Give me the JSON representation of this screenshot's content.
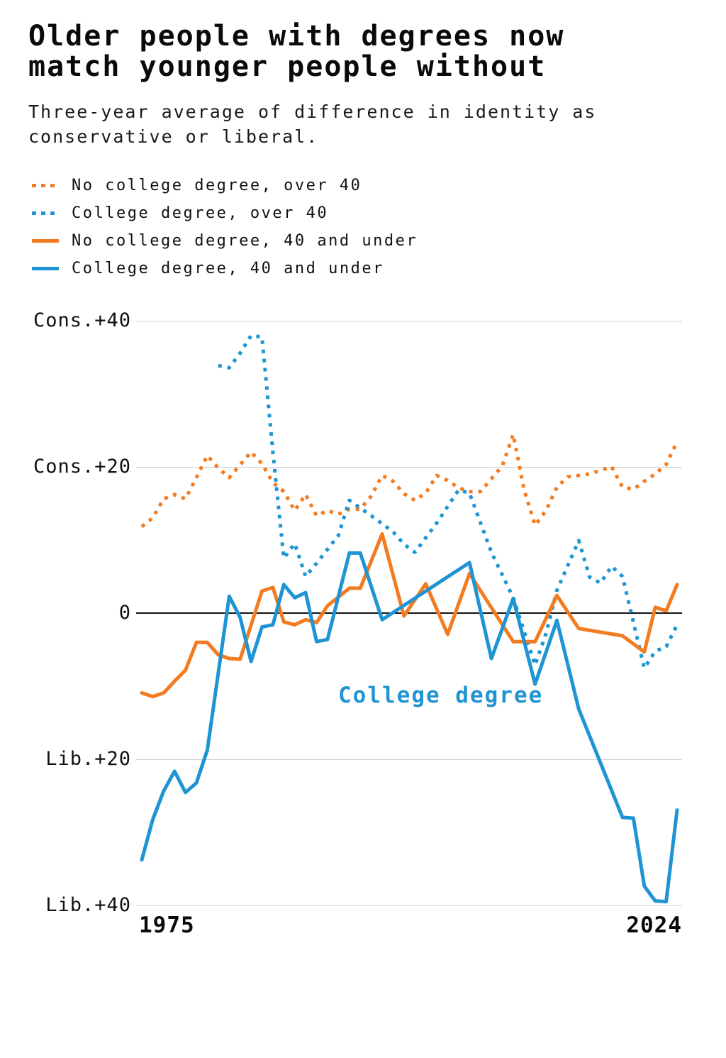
{
  "header": {
    "title_line1": "Older people with degrees now",
    "title_line2": "match younger people without",
    "subtitle_line1": "Three-year average of difference in identity as",
    "subtitle_line2": "conservative or liberal."
  },
  "colors": {
    "orange": "#f37b21",
    "blue": "#1e95d2",
    "gridline": "#cfcfcf",
    "zero_line": "#111111"
  },
  "chart_data": {
    "type": "line",
    "title": "Older people with degrees now match younger people without",
    "subtitle": "Three-year average of difference in identity as conservative or liberal.",
    "x_axis": {
      "left_label": "1975",
      "right_label": "2024",
      "min": 1975,
      "max": 2024
    },
    "y_axis": {
      "unit": "percentage-point difference, conservative minus liberal",
      "min": -43,
      "max": 42,
      "grid": true,
      "ticks": [
        {
          "label": "Cons.+40",
          "value": 40
        },
        {
          "label": "Cons.+20",
          "value": 20
        },
        {
          "label": "0",
          "value": 0
        },
        {
          "label": "Lib.+20",
          "value": -20
        },
        {
          "label": "Lib.+40",
          "value": -40
        }
      ]
    },
    "annotation": {
      "text": "College degree",
      "color": "#1e95d2"
    },
    "legend_position": "top-left",
    "series": [
      {
        "id": "no-college-over-40",
        "label": "No college degree, over 40",
        "style": "dotted",
        "color": "#f37b21",
        "points": [
          [
            1975,
            11.8
          ],
          [
            1976,
            13
          ],
          [
            1977,
            15.6
          ],
          [
            1978,
            16.2
          ],
          [
            1979,
            15.6
          ],
          [
            1980,
            18.5
          ],
          [
            1981,
            21.5
          ],
          [
            1982,
            19.8
          ],
          [
            1983,
            18.5
          ],
          [
            1985,
            22
          ],
          [
            1986,
            20.4
          ],
          [
            1987,
            17.8
          ],
          [
            1988,
            16.6
          ],
          [
            1989,
            14
          ],
          [
            1990,
            16.2
          ],
          [
            1991,
            13.3
          ],
          [
            1992,
            14
          ],
          [
            1993,
            13.5
          ],
          [
            1994,
            14.2
          ],
          [
            1995,
            14.2
          ],
          [
            1996,
            16
          ],
          [
            1997,
            18.8
          ],
          [
            1998,
            18
          ],
          [
            1999,
            16.3
          ],
          [
            2000,
            15.4
          ],
          [
            2001,
            16.4
          ],
          [
            2002,
            18.8
          ],
          [
            2003,
            18.1
          ],
          [
            2004,
            17.1
          ],
          [
            2005,
            16.6
          ],
          [
            2006,
            16.6
          ],
          [
            2008,
            20.1
          ],
          [
            2009,
            24.4
          ],
          [
            2010,
            16.8
          ],
          [
            2011,
            12
          ],
          [
            2012,
            14
          ],
          [
            2013,
            17.2
          ],
          [
            2014,
            18.6
          ],
          [
            2015,
            18.8
          ],
          [
            2016,
            19
          ],
          [
            2017,
            19.5
          ],
          [
            2018,
            20
          ],
          [
            2019,
            17.2
          ],
          [
            2020,
            16.9
          ],
          [
            2021,
            18
          ],
          [
            2022,
            19
          ],
          [
            2023,
            20.3
          ],
          [
            2024,
            23.4
          ]
        ]
      },
      {
        "id": "college-over-40",
        "label": "College degree, over 40",
        "style": "dotted",
        "color": "#1e95d2",
        "points": [
          [
            1982,
            33.8
          ],
          [
            1983,
            33.5
          ],
          [
            1984,
            35.5
          ],
          [
            1985,
            37.9
          ],
          [
            1986,
            37.7
          ],
          [
            1987,
            22
          ],
          [
            1988,
            7.5
          ],
          [
            1989,
            9.5
          ],
          [
            1990,
            5
          ],
          [
            1991,
            6.8
          ],
          [
            1992,
            8.7
          ],
          [
            1993,
            10.6
          ],
          [
            1994,
            15.4
          ],
          [
            1996,
            13.3
          ],
          [
            1998,
            11.1
          ],
          [
            1999,
            9.4
          ],
          [
            2000,
            8.3
          ],
          [
            2002,
            12.3
          ],
          [
            2004,
            16.8
          ],
          [
            2005,
            16.4
          ],
          [
            2007,
            8.3
          ],
          [
            2009,
            2.1
          ],
          [
            2011,
            -7.1
          ],
          [
            2012,
            -2.8
          ],
          [
            2013,
            3.1
          ],
          [
            2015,
            9.9
          ],
          [
            2016,
            4.9
          ],
          [
            2017,
            4.1
          ],
          [
            2018,
            6.4
          ],
          [
            2019,
            5
          ],
          [
            2021,
            -7.5
          ],
          [
            2022,
            -5.2
          ],
          [
            2023,
            -4.6
          ],
          [
            2024,
            -1.6
          ]
        ]
      },
      {
        "id": "no-college-40-and-under",
        "label": "No college degree, 40 and under",
        "style": "solid",
        "color": "#f37b21",
        "points": [
          [
            1975,
            -10.9
          ],
          [
            1976,
            -11.4
          ],
          [
            1977,
            -10.9
          ],
          [
            1978,
            -9.3
          ],
          [
            1979,
            -7.8
          ],
          [
            1980,
            -4
          ],
          [
            1981,
            -4
          ],
          [
            1982,
            -5.7
          ],
          [
            1983,
            -6.2
          ],
          [
            1984,
            -6.3
          ],
          [
            1986,
            3
          ],
          [
            1987,
            3.5
          ],
          [
            1988,
            -1.2
          ],
          [
            1989,
            -1.6
          ],
          [
            1990,
            -0.9
          ],
          [
            1991,
            -1.3
          ],
          [
            1992,
            1
          ],
          [
            1994,
            3.4
          ],
          [
            1995,
            3.4
          ],
          [
            1997,
            10.8
          ],
          [
            1999,
            -0.4
          ],
          [
            2001,
            4
          ],
          [
            2003,
            -2.9
          ],
          [
            2005,
            5.4
          ],
          [
            2009,
            -3.9
          ],
          [
            2011,
            -3.9
          ],
          [
            2013,
            2.4
          ],
          [
            2015,
            -2.1
          ],
          [
            2019,
            -3.1
          ],
          [
            2021,
            -5.3
          ],
          [
            2022,
            0.8
          ],
          [
            2023,
            0.3
          ],
          [
            2024,
            3.9
          ]
        ]
      },
      {
        "id": "college-40-and-under",
        "label": "College degree, 40 and under",
        "style": "solid",
        "color": "#1e95d2",
        "points": [
          [
            1975,
            -33.7
          ],
          [
            1976,
            -28.2
          ],
          [
            1977,
            -24.3
          ],
          [
            1978,
            -21.6
          ],
          [
            1979,
            -24.5
          ],
          [
            1980,
            -23.2
          ],
          [
            1981,
            -18.7
          ],
          [
            1983,
            2.3
          ],
          [
            1984,
            -0.6
          ],
          [
            1985,
            -6.6
          ],
          [
            1986,
            -1.9
          ],
          [
            1987,
            -1.6
          ],
          [
            1988,
            3.9
          ],
          [
            1989,
            2.1
          ],
          [
            1990,
            2.8
          ],
          [
            1991,
            -3.9
          ],
          [
            1992,
            -3.6
          ],
          [
            1994,
            8.2
          ],
          [
            1995,
            8.2
          ],
          [
            1997,
            -0.9
          ],
          [
            2005,
            6.9
          ],
          [
            2007,
            -6.2
          ],
          [
            2009,
            2
          ],
          [
            2011,
            -9.7
          ],
          [
            2013,
            -1
          ],
          [
            2015,
            -13.1
          ],
          [
            2019,
            -27.9
          ],
          [
            2020,
            -28
          ],
          [
            2021,
            -37.3
          ],
          [
            2022,
            -39.3
          ],
          [
            2023,
            -39.4
          ],
          [
            2024,
            -26.9
          ]
        ]
      }
    ]
  }
}
